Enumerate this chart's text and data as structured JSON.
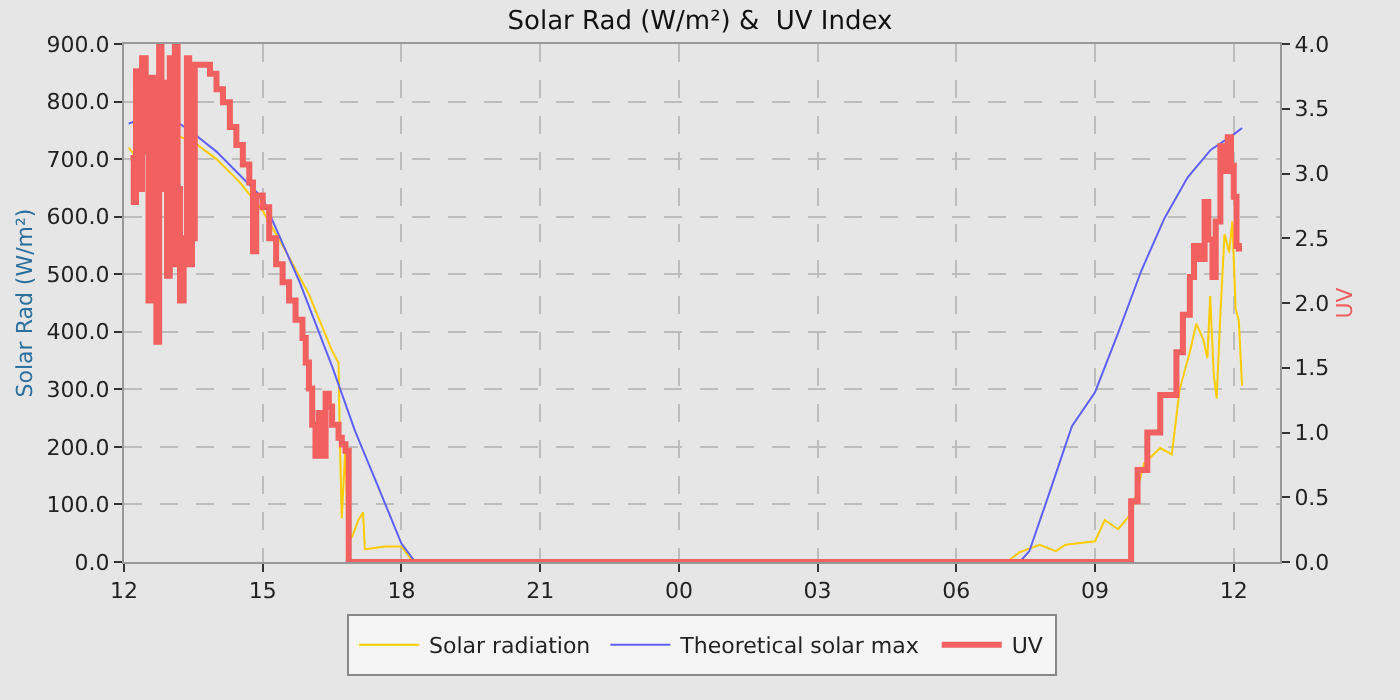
{
  "chart_data": {
    "type": "line",
    "title": "Solar Rad (W/m²) &  UV Index",
    "ylabel": "Solar Rad (W/m²)",
    "y2label": "UV",
    "xlim": [
      12,
      37
    ],
    "xticks": [
      {
        "value": 12,
        "label": "12"
      },
      {
        "value": 15,
        "label": "15"
      },
      {
        "value": 18,
        "label": "18"
      },
      {
        "value": 21,
        "label": "21"
      },
      {
        "value": 24,
        "label": "00"
      },
      {
        "value": 27,
        "label": "03"
      },
      {
        "value": 30,
        "label": "06"
      },
      {
        "value": 33,
        "label": "09"
      },
      {
        "value": 36,
        "label": "12"
      }
    ],
    "ylim": [
      0,
      900
    ],
    "yticks": [
      {
        "value": 0,
        "label": "0.0"
      },
      {
        "value": 100,
        "label": "100.0"
      },
      {
        "value": 200,
        "label": "200.0"
      },
      {
        "value": 300,
        "label": "300.0"
      },
      {
        "value": 400,
        "label": "400.0"
      },
      {
        "value": 500,
        "label": "500.0"
      },
      {
        "value": 600,
        "label": "600.0"
      },
      {
        "value": 700,
        "label": "700.0"
      },
      {
        "value": 800,
        "label": "800.0"
      },
      {
        "value": 900,
        "label": "900.0"
      }
    ],
    "y2lim": [
      0,
      4
    ],
    "y2ticks": [
      {
        "value": 0,
        "label": "0.0"
      },
      {
        "value": 0.5,
        "label": "0.5"
      },
      {
        "value": 1,
        "label": "1.0"
      },
      {
        "value": 1.5,
        "label": "1.5"
      },
      {
        "value": 2,
        "label": "2.0"
      },
      {
        "value": 2.5,
        "label": "2.5"
      },
      {
        "value": 3,
        "label": "3.0"
      },
      {
        "value": 3.5,
        "label": "3.5"
      },
      {
        "value": 4,
        "label": "4.0"
      }
    ],
    "grid": true,
    "legend": "bottom",
    "marker": "none",
    "series": [
      {
        "name": "Solar radiation",
        "color": "#ffcc00",
        "x": [
          12.1,
          12.2,
          12.25,
          12.3,
          13.0,
          13.5,
          14.0,
          14.5,
          15.0,
          15.5,
          16.0,
          16.5,
          16.64,
          16.67,
          16.71,
          16.79,
          16.83,
          16.93,
          17.07,
          17.17,
          17.21,
          17.64,
          18.0,
          18.21,
          18.43,
          24,
          31.09,
          31.37,
          31.8,
          32.15,
          32.36,
          33.0,
          33.21,
          33.5,
          33.78,
          34.06,
          34.41,
          34.66,
          34.83,
          35.05,
          35.19,
          35.34,
          35.43,
          35.49,
          35.57,
          35.63,
          35.71,
          35.8,
          35.9,
          35.97,
          36.04,
          36.11,
          36.18
        ],
        "values": [
          720,
          710,
          650,
          740,
          745,
          730,
          700,
          660,
          610,
          540,
          465,
          367,
          346,
          205,
          76,
          205,
          54,
          43,
          73,
          86,
          22,
          27,
          27,
          5,
          0,
          0,
          0,
          17,
          30,
          19,
          30,
          36,
          73,
          57,
          84,
          171,
          198,
          187,
          300,
          365,
          414,
          387,
          354,
          462,
          322,
          284,
          430,
          570,
          538,
          592,
          441,
          419,
          306
        ]
      },
      {
        "name": "Theoretical solar max",
        "color": "#6060ff",
        "x": [
          12.1,
          12.5,
          13.0,
          13.5,
          14.0,
          15.0,
          15.8,
          16.5,
          17.0,
          17.5,
          18.0,
          18.3,
          24,
          31.37,
          31.58,
          32.0,
          32.5,
          33.0,
          33.5,
          34.0,
          34.5,
          35.0,
          35.5,
          36.0,
          36.18
        ],
        "values": [
          762,
          772,
          773,
          745,
          713,
          632,
          486,
          340,
          227,
          130,
          32,
          0,
          0,
          0,
          19,
          117,
          236,
          295,
          398,
          506,
          597,
          668,
          716,
          743,
          754
        ]
      },
      {
        "name": "UV",
        "color": "#f26060",
        "axis": "y2",
        "type": "step",
        "x": [
          12.14,
          12.21,
          12.26,
          12.33,
          12.39,
          12.47,
          12.53,
          12.59,
          12.64,
          12.7,
          12.76,
          12.81,
          12.87,
          12.93,
          12.99,
          13.04,
          13.1,
          13.16,
          13.21,
          13.29,
          13.36,
          13.41,
          13.47,
          13.53,
          13.71,
          13.86,
          14.0,
          14.14,
          14.29,
          14.43,
          14.57,
          14.71,
          14.79,
          14.86,
          15.0,
          15.14,
          15.29,
          15.43,
          15.57,
          15.71,
          15.86,
          15.93,
          16.0,
          16.07,
          16.14,
          16.21,
          16.29,
          16.36,
          16.43,
          16.5,
          16.57,
          16.64,
          16.71,
          16.79,
          16.86,
          24,
          33.77,
          33.78,
          33.92,
          34.13,
          34.41,
          34.66,
          34.76,
          34.9,
          35.05,
          35.14,
          35.26,
          35.37,
          35.45,
          35.54,
          35.61,
          35.71,
          35.8,
          35.87,
          35.94,
          36.0,
          36.06,
          36.11,
          36.18
        ],
        "values": [
          3.12,
          2.78,
          3.79,
          2.88,
          3.89,
          3.17,
          2.02,
          3.74,
          2.59,
          1.7,
          3.98,
          2.88,
          3.7,
          2.21,
          3.89,
          2.3,
          3.98,
          2.88,
          2.02,
          2.5,
          3.89,
          2.3,
          2.5,
          3.84,
          3.84,
          3.77,
          3.65,
          3.55,
          3.36,
          3.22,
          3.07,
          2.93,
          2.4,
          2.83,
          2.74,
          2.5,
          2.3,
          2.16,
          2.02,
          1.87,
          1.73,
          1.54,
          1.34,
          1.06,
          0.82,
          1.15,
          0.82,
          1.3,
          1.2,
          1.06,
          1.06,
          0.96,
          0.91,
          0.86,
          0,
          0,
          0,
          0.47,
          0.71,
          1.0,
          1.29,
          1.29,
          1.62,
          1.91,
          2.2,
          2.44,
          2.34,
          2.78,
          2.49,
          2.2,
          2.63,
          3.21,
          3.02,
          3.28,
          3.06,
          2.82,
          2.44,
          2.42,
          2.42
        ]
      }
    ]
  }
}
